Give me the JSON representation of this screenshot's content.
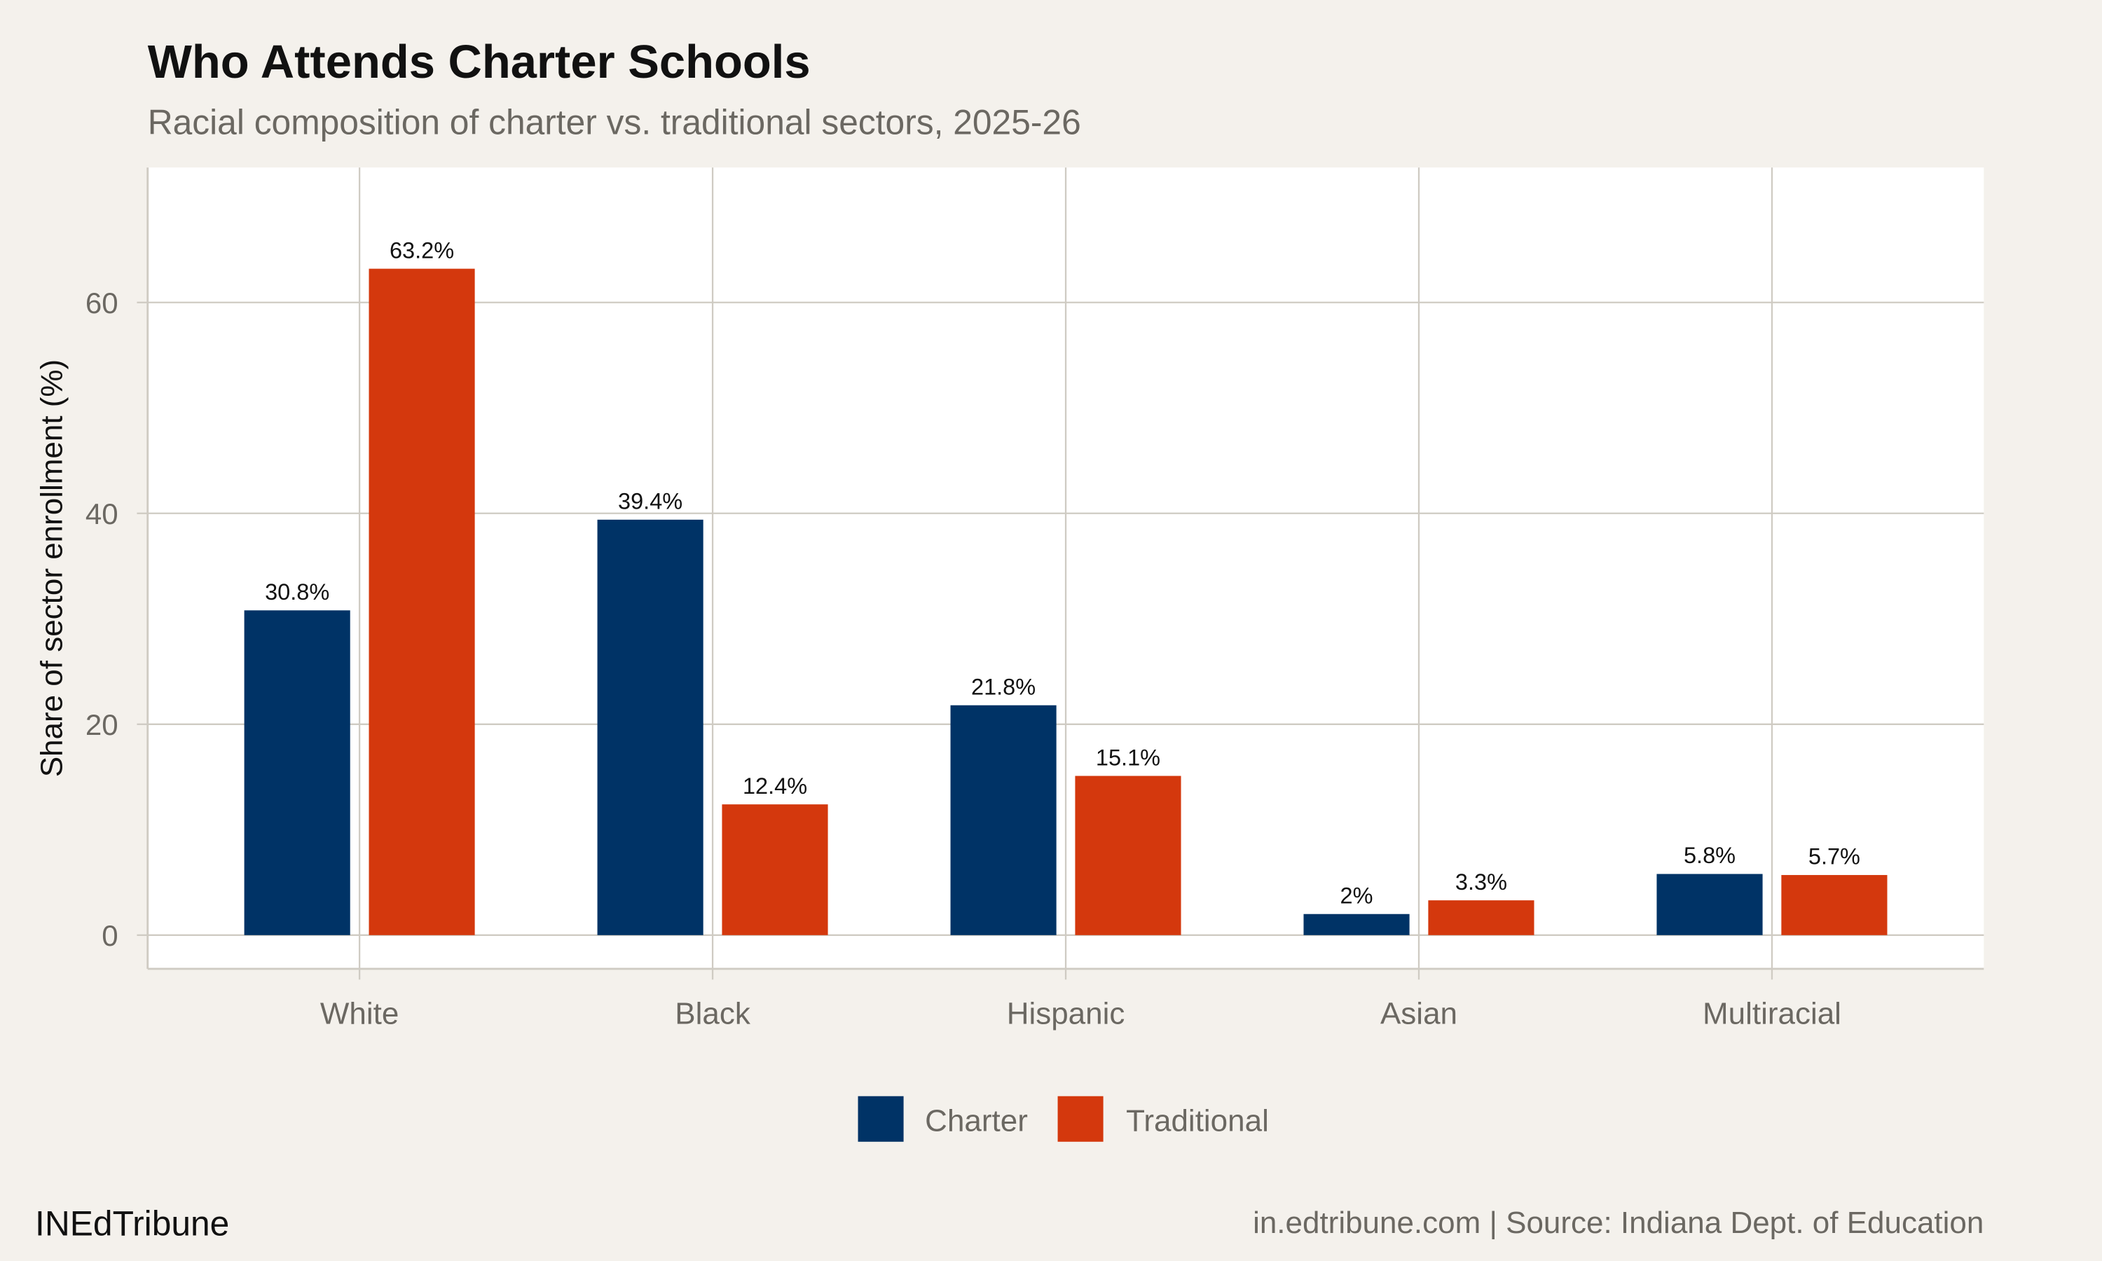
{
  "title": "Who Attends Charter Schools",
  "subtitle": "Racial composition of charter vs. traditional sectors, 2025-26",
  "brand": "INEdTribune",
  "caption": "in.edtribune.com | Source: Indiana Dept. of Education",
  "colors": {
    "background": "#f4f1ec",
    "panel": "#ffffff",
    "grid": "#cfcbc3",
    "Charter": "#003366",
    "Traditional": "#d4380d"
  },
  "chart_data": {
    "type": "bar",
    "title": "Who Attends Charter Schools",
    "subtitle": "Racial composition of charter vs. traditional sectors, 2025-26",
    "xlabel": "",
    "ylabel": "Share of sector enrollment (%)",
    "categories": [
      "White",
      "Black",
      "Hispanic",
      "Asian",
      "Multiracial"
    ],
    "series": [
      {
        "name": "Charter",
        "values": [
          30.8,
          39.4,
          21.8,
          2.0,
          5.8
        ],
        "labels": [
          "30.8%",
          "39.4%",
          "21.8%",
          "2%",
          "5.8%"
        ]
      },
      {
        "name": "Traditional",
        "values": [
          63.2,
          12.4,
          15.1,
          3.3,
          5.7
        ],
        "labels": [
          "63.2%",
          "12.4%",
          "15.1%",
          "3.3%",
          "5.7%"
        ]
      }
    ],
    "ylim": [
      -3.2,
      72.8
    ],
    "yticks": [
      0,
      20,
      40,
      60
    ],
    "ytick_labels": [
      "0",
      "20",
      "40",
      "60"
    ],
    "grid": true,
    "legend": "bottom"
  }
}
